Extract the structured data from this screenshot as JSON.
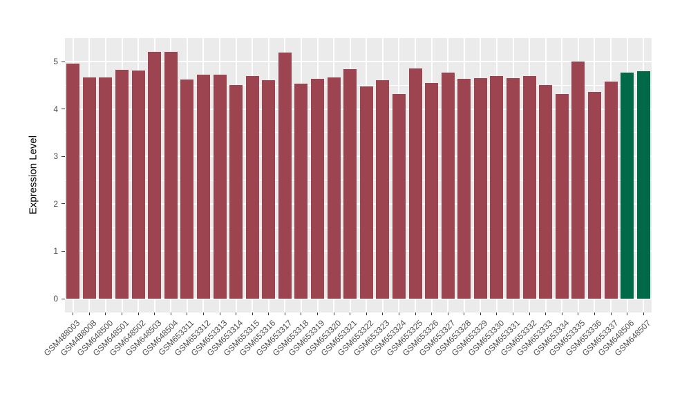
{
  "chart_data": {
    "type": "bar",
    "title": "",
    "xlabel": "",
    "ylabel": "Expression Level",
    "legend_position": "none",
    "grid": "on",
    "panel_background": "#ebebeb",
    "grid_color": "#ffffff",
    "bar_color": "#9c4551",
    "highlight_color": "#006948",
    "axis_text_color": "#4d4d4d",
    "tick_color": "#333333",
    "ylim": [
      0,
      5.5
    ],
    "yticks": [
      0,
      1,
      2,
      3,
      4,
      5
    ],
    "yticks_minor": [
      0.5,
      1.5,
      2.5,
      3.5,
      4.5
    ],
    "highlighted_categories": [
      "GSM648506",
      "GSM648507"
    ],
    "categories": [
      "GSM488003",
      "GSM488008",
      "GSM648500",
      "GSM648501",
      "GSM648502",
      "GSM648503",
      "GSM648504",
      "GSM653311",
      "GSM653312",
      "GSM653313",
      "GSM653314",
      "GSM653315",
      "GSM653316",
      "GSM653317",
      "GSM653318",
      "GSM653319",
      "GSM653320",
      "GSM653321",
      "GSM653322",
      "GSM653323",
      "GSM653324",
      "GSM653325",
      "GSM653326",
      "GSM653327",
      "GSM653328",
      "GSM653329",
      "GSM653330",
      "GSM653331",
      "GSM653332",
      "GSM653333",
      "GSM653334",
      "GSM653335",
      "GSM653336",
      "GSM653337",
      "GSM648506",
      "GSM648507"
    ],
    "values": [
      4.95,
      4.66,
      4.66,
      4.82,
      4.81,
      5.21,
      5.21,
      4.62,
      4.73,
      4.73,
      4.5,
      4.7,
      4.61,
      5.19,
      4.53,
      4.63,
      4.66,
      4.84,
      4.48,
      4.61,
      4.31,
      4.85,
      4.55,
      4.77,
      4.63,
      4.65,
      4.7,
      4.65,
      4.7,
      4.51,
      4.31,
      5.0,
      4.36,
      4.58,
      4.77,
      4.8
    ]
  }
}
